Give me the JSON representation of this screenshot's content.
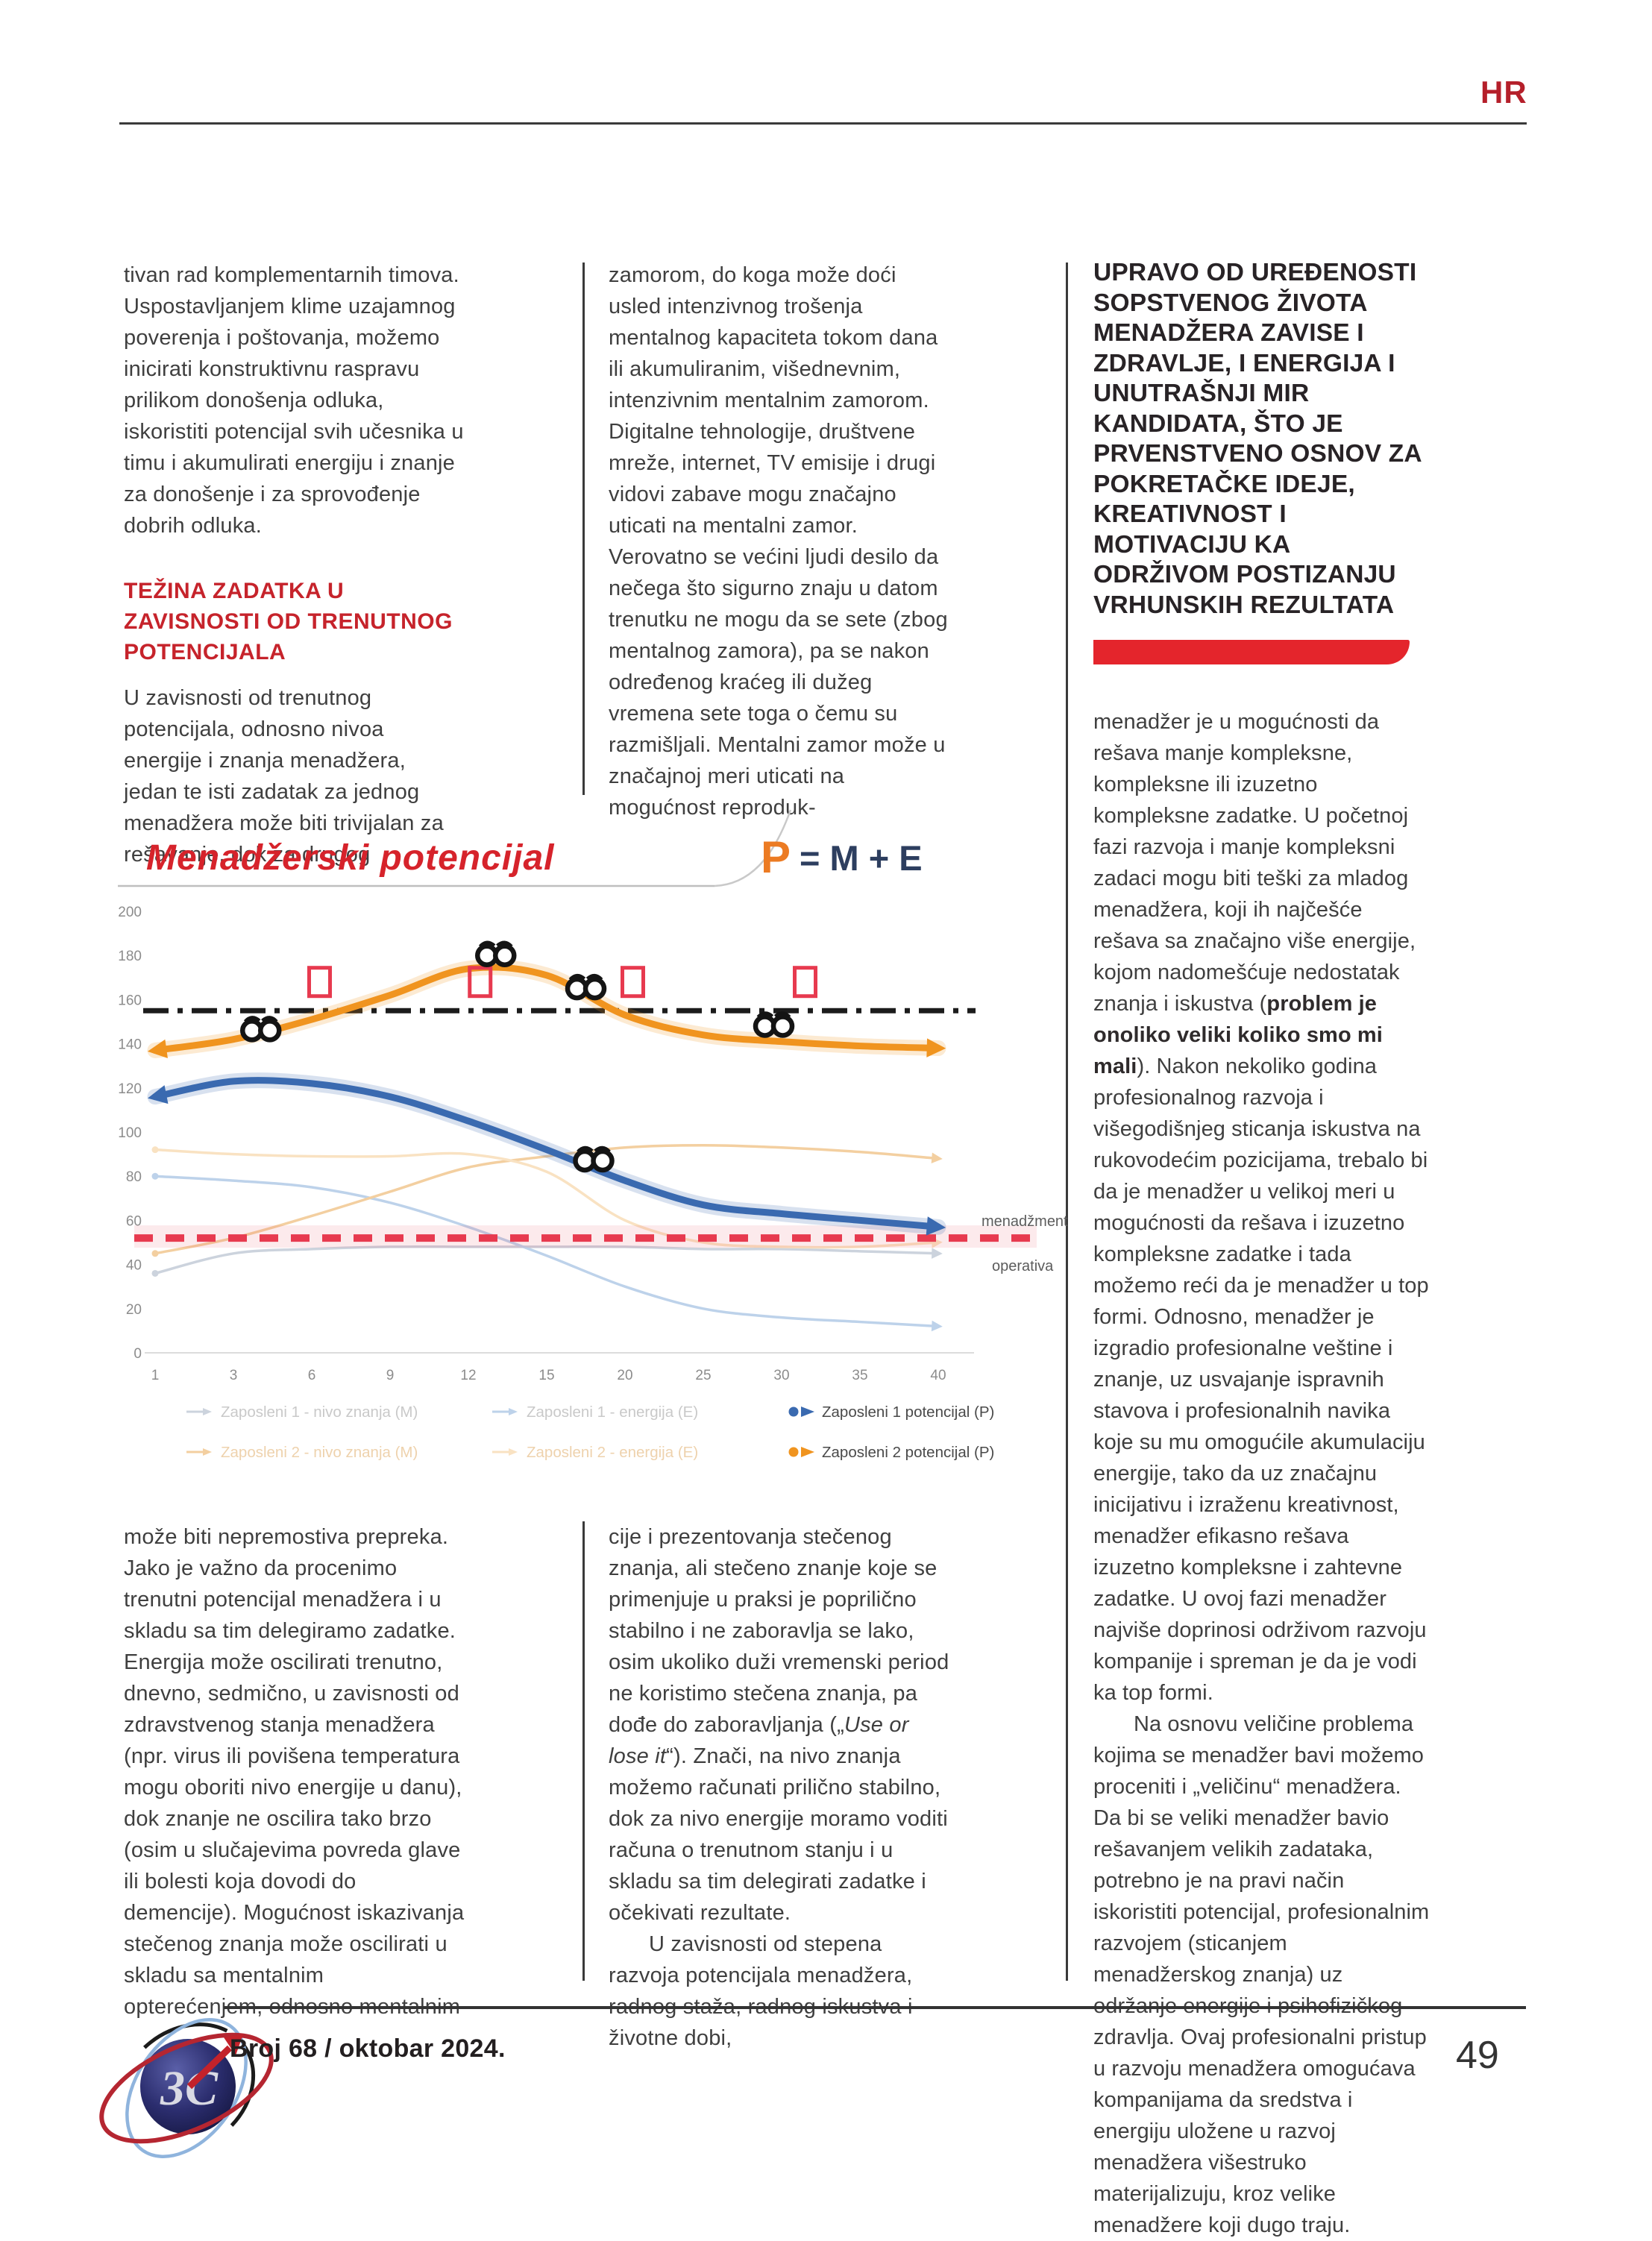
{
  "header": {
    "section_tag": "HR"
  },
  "article": {
    "col1_top": {
      "para1": "tivan rad komplementarnih timova. Uspostavljanjem klime uzajamnog poverenja i poštovanja, možemo inicirati konstruktivnu raspravu prilikom donošenja odluka, iskoristiti potencijal svih učesnika u timu i akumulirati energiju i znanje za donošenje i za sprovođenje dobrih odluka.",
      "heading": "TEŽINA ZADATKA U ZAVISNOSTI OD TRENUTNOG POTENCIJALA",
      "para2": "U zavisnosti od trenutnog potencijala, odnosno nivoa energije i znanja menadžera, jedan te isti zadatak za jednog menadžera može biti trivijalan za rešavanje, dok za drugog"
    },
    "col2_top": {
      "para1": "zamorom, do koga može doći usled intenzivnog trošenja mentalnog kapaciteta tokom dana ili akumuliranim, višednevnim, intenzivnim mentalnim zamorom. Digitalne tehnologije, društvene mreže, internet, TV emisije i drugi vidovi zabave mogu značajno uticati na mentalni zamor. Verovatno se većini ljudi desilo da nečega što sigurno znaju u datom trenutku ne mogu da se sete (zbog mentalnog zamora), pa se nakon određenog kraćeg ili dužeg vremena sete toga o čemu su razmišljali. Mentalni zamor može u značajnoj meri uticati na mogućnost reproduk-"
    },
    "col3": {
      "heading": "UPRAVO OD UREĐENOSTI SOPSTVENOG ŽIVOTA MENADŽERA ZAVISE I ZDRAVLJE, I ENERGIJA I UNUTRAŠNJI MIR KANDIDATA, ŠTO JE PRVENSTVENO OSNOV ZA POKRETAČKE IDEJE, KREATIVNOST I MOTIVACIJU KA ODRŽIVOM POSTIZANJU VRHUNSKIH REZULTATA",
      "body_pre_bold": "menadžer je u mogućnosti da rešava manje kompleksne, kompleksne ili izuzetno kompleksne zadatke. U početnoj fazi razvoja i manje kompleksni zadaci mogu biti teški za mladog menadžera, koji ih najčešće rešava sa značajno više energije, kojom nadomešćuje nedostatak znanja i iskustva (",
      "body_bold": "problem je onoliko veliki koliko smo mi mali",
      "body_post_bold": "). Nakon nekoliko godina profesionalnog razvoja i višegodišnjeg sticanja iskustva na rukovodećim pozicijama, trebalo bi da je menadžer u velikoj meri u mogućnosti da rešava i izuzetno kompleksne zadatke i tada možemo reći da je menadžer u top formi. Odnosno, menadžer je izgradio profesionalne veštine i znanje, uz usvajanje ispravnih stavova i profesionalnih navika koje su mu omogućile akumulaciju energije, tako da uz značajnu inicijativu i izraženu kreativnost, menadžer efikasno rešava izuzetno kompleksne i zahtevne zadatke. U ovoj fazi menadžer najviše doprinosi održivom razvoju kompanije i spreman je da je vodi ka top formi.",
      "para2": "Na osnovu veličine problema kojima se menadžer bavi možemo proceniti i „veličinu“ menadžera. Da bi se veliki menadžer bavio rešavanjem velikih zadataka, potrebno je na pravi način iskoristiti potencijal, profesionalnim razvojem (sticanjem menadžerskog znanja) uz održanje energije i psihofizičkog zdravlja. Ovaj profesionalni pristup u razvoju menadžera omogućava kompanijama da sredstva i energiju uložene u razvoj menadžera višestruko materijalizuju, kroz velike menadžere koji dugo traju."
    },
    "col1_bottom": {
      "para1": "može biti nepremostiva prepreka. Jako je važno da procenimo trenutni potencijal menadžera i u skladu sa tim delegiramo zadatke. Energija može oscilirati trenutno, dnevno, sedmično, u zavisnosti od zdravstvenog stanja menadžera (npr. virus ili povišena temperatura mogu oboriti nivo energije u danu), dok znanje ne oscilira tako brzo (osim u slučajevima povreda glave ili bolesti koja dovodi do demencije). Mogućnost iskazivanja stečenog znanja može oscilirati u skladu sa mentalnim opterećenjem, odnosno mentalnim"
    },
    "col2_bottom": {
      "para1_pre_italic": "cije i prezentovanja stečenog znanja, ali stečeno znanje koje se primenjuje u praksi je poprilično stabilno i ne zaboravlja se lako, osim ukoliko duži vremenski period ne koristimo stečena znanja, pa dođe do zaboravljanja („",
      "para1_italic": "Use or lose it",
      "para1_post_italic": "“). Znači, na nivo znanja možemo računati prilično stabilno, dok za nivo energije moramo voditi računa o trenutnom stanju i u skladu sa tim delegirati zadatke i očekivati rezultate.",
      "para2": "U zavisnosti od stepena razvoja potencijala menadžera, radnog staža, radnog iskustva i životne dobi,"
    }
  },
  "chart_data": {
    "type": "line",
    "title": "Menadžerski potencijal",
    "formula": {
      "lhs": "P",
      "rhs": "= M + E",
      "lhs_color": "#ec7b23",
      "rhs_color": "#2d3e5f"
    },
    "x_categories": [
      1,
      3,
      6,
      9,
      12,
      15,
      20,
      25,
      30,
      35,
      40
    ],
    "y_ticks": [
      0,
      20,
      40,
      60,
      80,
      100,
      120,
      140,
      160,
      180,
      200
    ],
    "ylim": [
      0,
      200
    ],
    "grid": false,
    "legend_position": "bottom",
    "series": [
      {
        "name": "Zaposleni 1 - nivo znanja (M)",
        "color": "#ccd3dd",
        "bold": false,
        "values": [
          36,
          45,
          47,
          48,
          48,
          48,
          48,
          47,
          47,
          46,
          45
        ]
      },
      {
        "name": "Zaposleni 1 - energija (E)",
        "color": "#bdd2ea",
        "bold": false,
        "values": [
          80,
          78,
          75,
          68,
          57,
          44,
          30,
          20,
          16,
          14,
          12
        ]
      },
      {
        "name": "Zaposleni 1 potencijal (P)",
        "color": "#3a6ab0",
        "bold": true,
        "values": [
          116,
          123,
          122,
          116,
          105,
          92,
          78,
          67,
          63,
          60,
          57
        ]
      },
      {
        "name": "Zaposleni 2 - nivo znanja (M)",
        "color": "#f3cfa0",
        "bold": false,
        "values": [
          45,
          52,
          62,
          73,
          84,
          89,
          93,
          94,
          93,
          91,
          88
        ]
      },
      {
        "name": "Zaposleni 2 - energija (E)",
        "color": "#f9e2c2",
        "bold": false,
        "values": [
          92,
          90,
          89,
          89,
          90,
          82,
          60,
          50,
          48,
          48,
          50
        ]
      },
      {
        "name": "Zaposleni 2 potencijal (P)",
        "color": "#f0941f",
        "bold": true,
        "values": [
          137,
          142,
          151,
          162,
          174,
          171,
          153,
          144,
          141,
          139,
          138
        ]
      }
    ],
    "reference_lines": [
      {
        "y": 155,
        "style": "dashdot",
        "color": "#1c1c1c"
      },
      {
        "y": 52,
        "style": "dashed",
        "color": "#e73a4f",
        "label_above": "menadžment",
        "label_below": "operativa"
      }
    ],
    "markers": {
      "squares": {
        "color": "#e73a4f",
        "points": [
          {
            "i": 2.1,
            "y": 168
          },
          {
            "i": 4.15,
            "y": 168
          },
          {
            "i": 6.1,
            "y": 168
          },
          {
            "i": 8.3,
            "y": 168
          }
        ]
      },
      "binoculars": [
        {
          "i": 1.35,
          "y": 147
        },
        {
          "i": 4.35,
          "y": 181
        },
        {
          "i": 5.5,
          "y": 166
        },
        {
          "i": 7.9,
          "y": 149
        },
        {
          "i": 5.6,
          "y": 88
        }
      ]
    },
    "legend_rows": [
      [
        0,
        1,
        2
      ],
      [
        3,
        4,
        5
      ]
    ],
    "legend_text_colors": {
      "faint_row1": "#c9c9c9",
      "faint_row2": "#eed2ad",
      "bold": "#4a4a4a"
    }
  },
  "footer": {
    "issue": "Broj 68 / oktobar 2024.",
    "page_number": "49",
    "logo_text": "3C"
  }
}
